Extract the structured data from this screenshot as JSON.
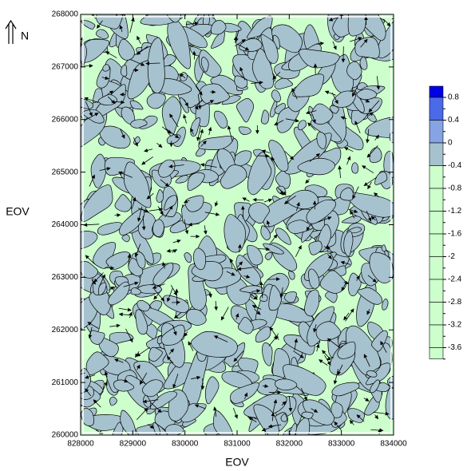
{
  "chart_data": {
    "type": "contour",
    "xlabel": "EOV",
    "ylabel": "EOV",
    "north": "N",
    "xlim": [
      828000,
      834000
    ],
    "xticks": [
      828000,
      829000,
      830000,
      831000,
      832000,
      833000,
      834000
    ],
    "ylim": [
      260000,
      268000
    ],
    "yticks": [
      260000,
      261000,
      262000,
      263000,
      264000,
      265000,
      266000,
      267000,
      268000
    ],
    "fill_colors": [
      "#ccffcc",
      "#a6c2ce"
    ],
    "legend": {
      "levels": [
        0.8,
        0.4,
        0,
        -0.4,
        -0.8,
        -1.2,
        -1.6,
        -2,
        -2.4,
        -2.8,
        -3.2,
        -3.6
      ],
      "colors": [
        "#0000e6",
        "#4a6ae8",
        "#86a4e4",
        "#a6c2ce",
        "#ccffcc",
        "#ccffcc",
        "#ccffcc",
        "#ccffcc",
        "#ccffcc",
        "#ccffcc",
        "#ccffcc",
        "#ccffcc",
        "#ccffcc"
      ]
    }
  }
}
